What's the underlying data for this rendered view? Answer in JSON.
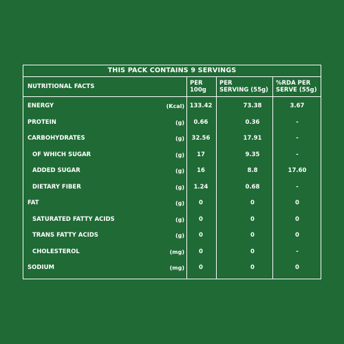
{
  "panel": {
    "title": "THIS PACK CONTAINS 9 SERVINGS",
    "header": {
      "label": "NUTRITIONAL FACTS",
      "per100_line1": "PER",
      "per100_line2": "100g",
      "perserving_line1": "PER",
      "perserving_line2": "SERVING (55g)",
      "rda_line1": "%RDA PER",
      "rda_line2": "SERVE (55g)"
    },
    "rows": [
      {
        "name": "ENERGY",
        "unit": "(Kcal)",
        "per100": "133.42",
        "perserving": "73.38",
        "rda": "3.67",
        "sub": false
      },
      {
        "name": "PROTEIN",
        "unit": "(g)",
        "per100": "0.66",
        "perserving": "0.36",
        "rda": "-",
        "sub": false
      },
      {
        "name": "CARBOHYDRATES",
        "unit": "(g)",
        "per100": "32.56",
        "perserving": "17.91",
        "rda": "-",
        "sub": false
      },
      {
        "name": "OF WHICH SUGAR",
        "unit": "(g)",
        "per100": "17",
        "perserving": "9.35",
        "rda": "-",
        "sub": true
      },
      {
        "name": "ADDED SUGAR",
        "unit": "(g)",
        "per100": "16",
        "perserving": "8.8",
        "rda": "17.60",
        "sub": true
      },
      {
        "name": "DIETARY FIBER",
        "unit": "(g)",
        "per100": "1.24",
        "perserving": "0.68",
        "rda": "-",
        "sub": true
      },
      {
        "name": "FAT",
        "unit": "(g)",
        "per100": "0",
        "perserving": "0",
        "rda": "0",
        "sub": false
      },
      {
        "name": "SATURATED FATTY ACIDS",
        "unit": "(g)",
        "per100": "0",
        "perserving": "0",
        "rda": "0",
        "sub": true
      },
      {
        "name": "TRANS FATTY ACIDS",
        "unit": "(g)",
        "per100": "0",
        "perserving": "0",
        "rda": "0",
        "sub": true
      },
      {
        "name": "CHOLESTEROL",
        "unit": "(mg)",
        "per100": "0",
        "perserving": "0",
        "rda": "-",
        "sub": true
      },
      {
        "name": "SODIUM",
        "unit": "(mg)",
        "per100": "0",
        "perserving": "0",
        "rda": "0",
        "sub": false
      }
    ]
  },
  "colors": {
    "background": "#1f6a35",
    "text": "#ffffff"
  }
}
